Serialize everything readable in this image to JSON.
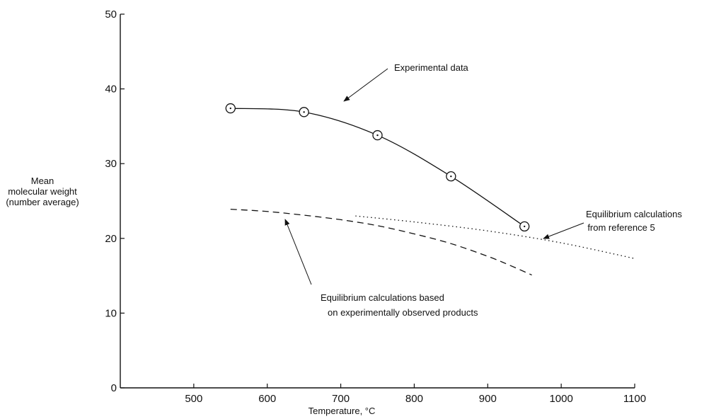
{
  "chart_data": {
    "type": "line",
    "xlabel": "Temperature, °C",
    "ylabel": [
      "Mean",
      "molecular weight",
      "(number average)"
    ],
    "xlim": [
      400,
      1100
    ],
    "ylim": [
      0,
      50
    ],
    "xticks": [
      500,
      600,
      700,
      800,
      900,
      1000,
      1100
    ],
    "yticks": [
      0,
      10,
      20,
      30,
      40,
      50
    ],
    "grid": false,
    "series": [
      {
        "name": "Experimental data",
        "style": "solid",
        "markers": "circle",
        "x": [
          550,
          650,
          750,
          850,
          950
        ],
        "y": [
          37.4,
          36.9,
          33.8,
          28.3,
          21.6
        ]
      },
      {
        "name": "Equilibrium calculations based on experimentally observed products",
        "style": "dashed",
        "x": [
          550,
          600,
          650,
          700,
          750,
          800,
          850,
          900,
          930,
          960
        ],
        "y": [
          23.9,
          23.6,
          23.1,
          22.5,
          21.7,
          20.6,
          19.3,
          17.6,
          16.4,
          15.1
        ]
      },
      {
        "name": "Equilibrium calculations from reference 5",
        "style": "dotted",
        "x": [
          720,
          800,
          900,
          1000,
          1100
        ],
        "y": [
          23.0,
          22.2,
          21.0,
          19.4,
          17.3
        ]
      }
    ],
    "annotations": [
      {
        "lines": [
          "Experimental data"
        ]
      },
      {
        "lines": [
          "Equilibrium calculations",
          "from reference 5"
        ]
      },
      {
        "lines": [
          "Equilibrium calculations based",
          "on experimentally observed products"
        ]
      }
    ]
  }
}
